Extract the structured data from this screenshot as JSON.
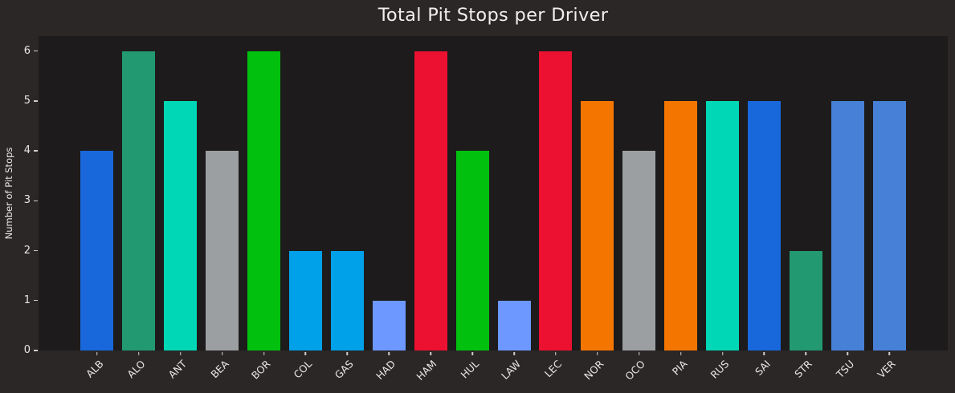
{
  "title": "Total Pit Stops per Driver",
  "chart_data": {
    "type": "bar",
    "title": "Total Pit Stops per Driver",
    "xlabel": "",
    "ylabel": "Number of Pit Stops",
    "categories": [
      "ALB",
      "ALO",
      "ANT",
      "BEA",
      "BOR",
      "COL",
      "GAS",
      "HAD",
      "HAM",
      "HUL",
      "LAW",
      "LEC",
      "NOR",
      "OCO",
      "PIA",
      "RUS",
      "SAI",
      "STR",
      "TSU",
      "VER"
    ],
    "values": [
      4,
      6,
      5,
      4,
      6,
      2,
      2,
      1,
      6,
      4,
      1,
      6,
      5,
      4,
      5,
      5,
      5,
      2,
      5,
      5
    ],
    "bar_colors": [
      "#1868DB",
      "#229971",
      "#00D7B6",
      "#9C9FA2",
      "#01C00E",
      "#00A1E8",
      "#00A1E8",
      "#6C98FF",
      "#ED1131",
      "#01C00E",
      "#6C98FF",
      "#ED1131",
      "#F47600",
      "#9C9FA2",
      "#F47600",
      "#00D7B6",
      "#1868DB",
      "#229971",
      "#4781D7",
      "#4781D7"
    ],
    "yticks": [
      0,
      1,
      2,
      3,
      4,
      5,
      6
    ],
    "ylim": [
      0,
      6.3
    ],
    "grid": false,
    "legend": null,
    "colors": {
      "figure_background": "#2B2727",
      "axes_background": "#1D1B1B",
      "text": "#E8E6E6",
      "title_text": "#F0EEEE",
      "tick_marks": "#CFCDCD"
    }
  }
}
